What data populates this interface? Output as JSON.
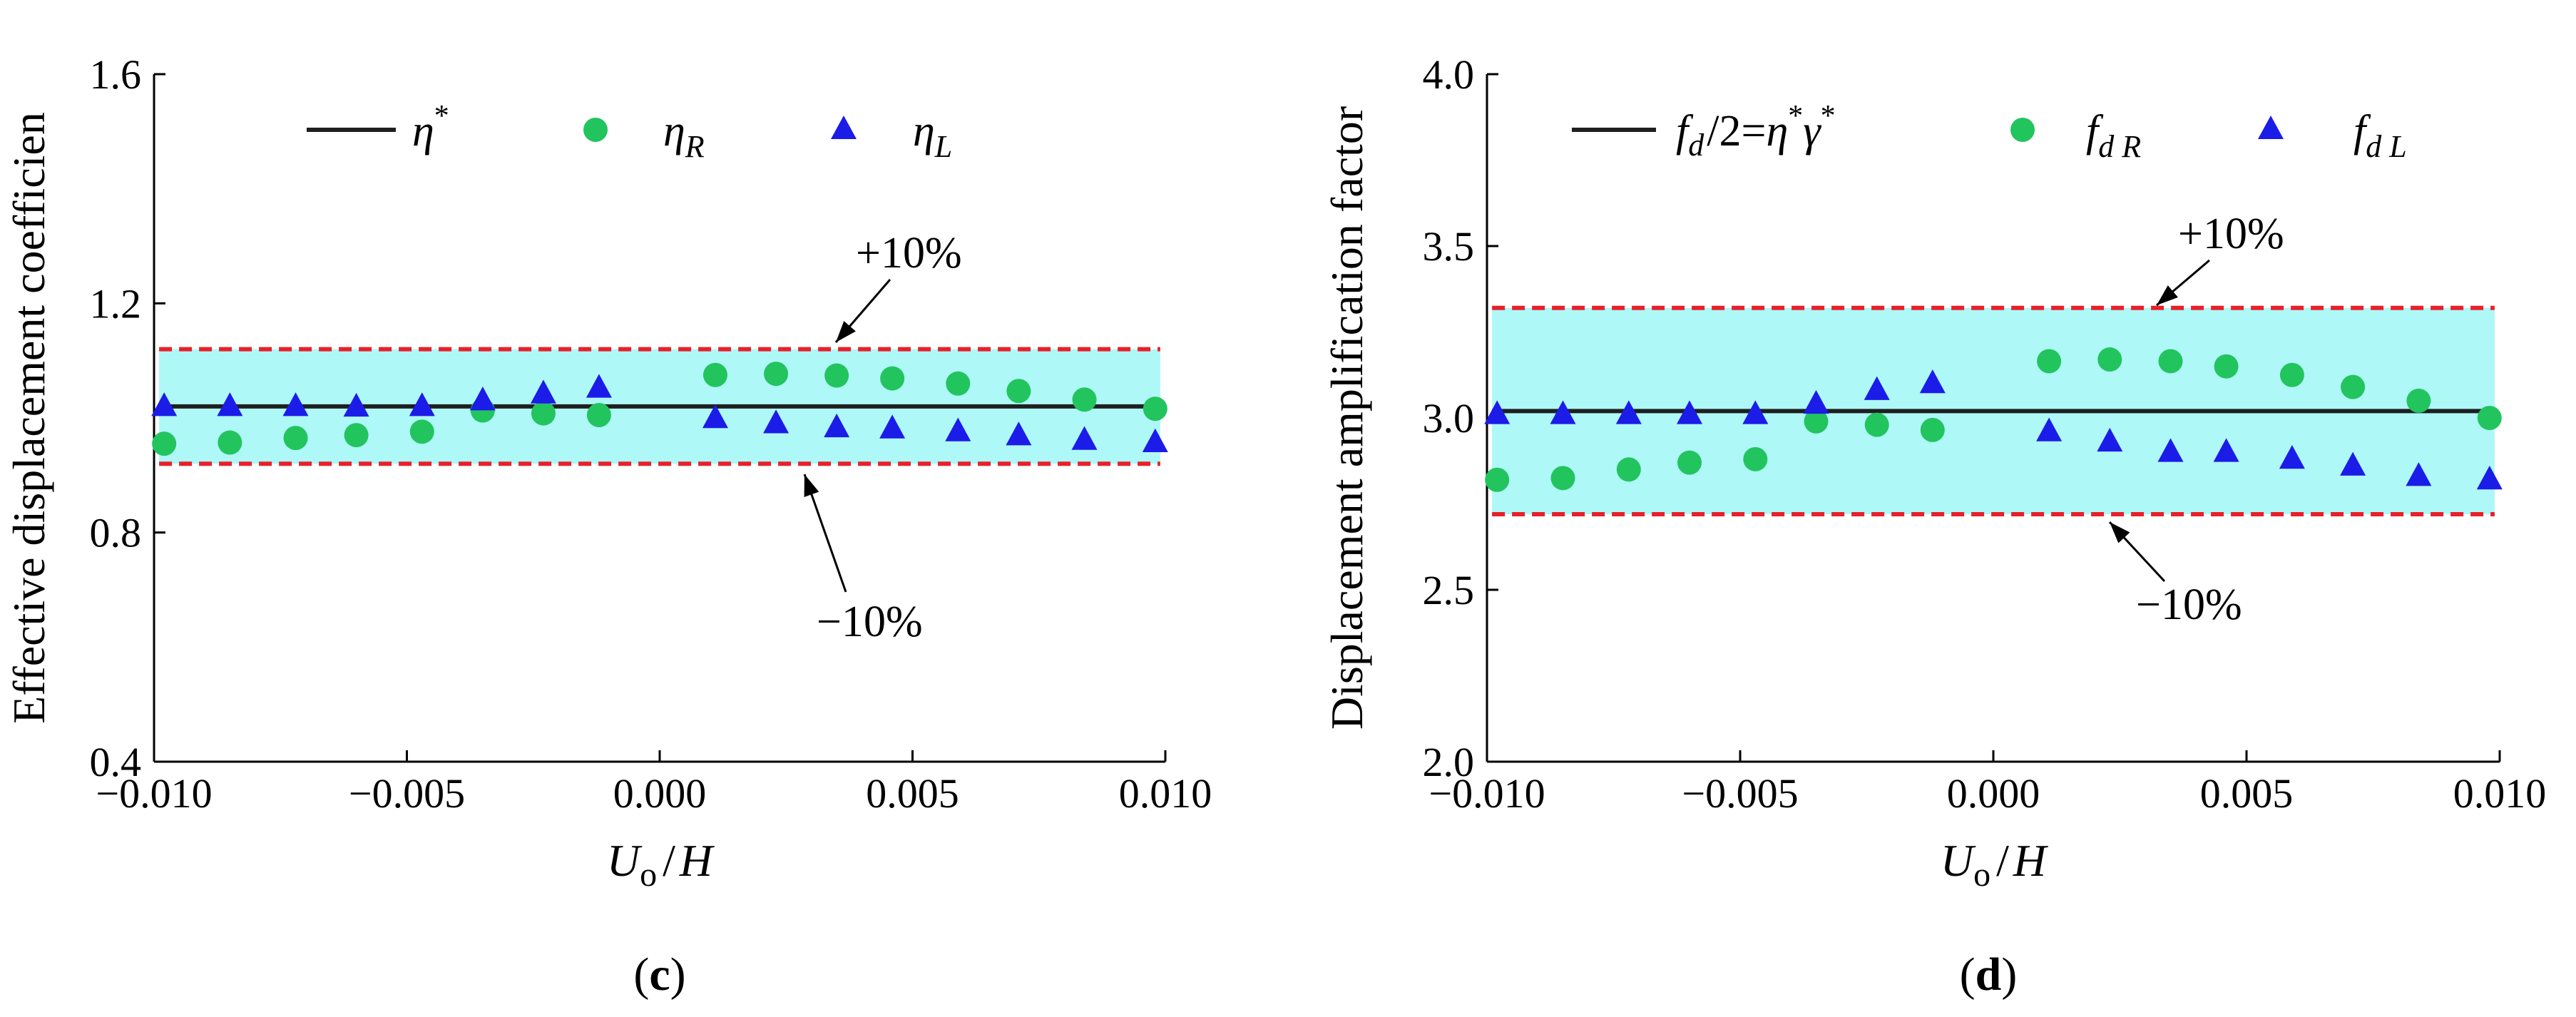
{
  "colors": {
    "band_fill": "#aef8f8",
    "ref_line": "#1f1f1f",
    "limit_dash": "#e8202a",
    "green": "#22c45e",
    "blue": "#1c1ce8"
  },
  "chart_data": [
    {
      "type": "scatter",
      "panel": "(c)",
      "panel_letter": "c",
      "xlabel": "Uo/H",
      "ylabel": "Effective displacement  coefficien",
      "xlim": [
        -0.01,
        0.01
      ],
      "ylim": [
        0.4,
        1.6
      ],
      "xticks": [
        -0.01,
        -0.005,
        0.0,
        0.005,
        0.01
      ],
      "xtick_labels": [
        "−0.010",
        "−0.005",
        "0.000",
        "0.005",
        "0.010"
      ],
      "yticks": [
        0.4,
        0.8,
        1.2,
        1.6
      ],
      "ytick_labels": [
        "0.4",
        "0.8",
        "1.2",
        "1.6"
      ],
      "reference_line": {
        "name": "η*",
        "value": 1.02
      },
      "band": {
        "upper": 1.12,
        "lower": 0.92
      },
      "annotations": {
        "upper": "+10%",
        "lower": "−10%"
      },
      "legend": [
        {
          "symbol": "η",
          "sup": "*",
          "sub": ""
        },
        {
          "symbol": "η",
          "sup": "",
          "sub": "R"
        },
        {
          "symbol": "η",
          "sup": "",
          "sub": "L"
        }
      ],
      "series": [
        {
          "name": "ηR",
          "marker": "circle",
          "color": "green",
          "x": [
            -0.0098,
            -0.0085,
            -0.0072,
            -0.006,
            -0.0047,
            -0.0035,
            -0.0023,
            -0.0012,
            0.0011,
            0.0023,
            0.0035,
            0.0046,
            0.0059,
            0.0071,
            0.0084,
            0.0098
          ],
          "y": [
            0.955,
            0.957,
            0.965,
            0.97,
            0.976,
            1.013,
            1.008,
            1.005,
            1.075,
            1.077,
            1.074,
            1.069,
            1.06,
            1.047,
            1.032,
            1.016
          ]
        },
        {
          "name": "ηL",
          "marker": "triangle",
          "color": "blue",
          "x": [
            -0.0098,
            -0.0085,
            -0.0072,
            -0.006,
            -0.0047,
            -0.0035,
            -0.0023,
            -0.0012,
            0.0011,
            0.0023,
            0.0035,
            0.0046,
            0.0059,
            0.0071,
            0.0084,
            0.0098
          ],
          "y": [
            1.02,
            1.02,
            1.02,
            1.019,
            1.02,
            1.03,
            1.042,
            1.052,
            0.999,
            0.99,
            0.983,
            0.981,
            0.976,
            0.969,
            0.961,
            0.957
          ]
        }
      ]
    },
    {
      "type": "scatter",
      "panel": "(d)",
      "panel_letter": "d",
      "xlabel": "Uo/H",
      "ylabel": "Displacement amplification factor",
      "xlim": [
        -0.01,
        0.01
      ],
      "ylim": [
        2.0,
        4.0
      ],
      "xticks": [
        -0.01,
        -0.005,
        0.0,
        0.005,
        0.01
      ],
      "xtick_labels": [
        "−0.010",
        "−0.005",
        "0.000",
        "0.005",
        "0.010"
      ],
      "yticks": [
        2.0,
        2.5,
        3.0,
        3.5,
        4.0
      ],
      "ytick_labels": [
        "2.0",
        "2.5",
        "3.0",
        "3.5",
        "4.0"
      ],
      "reference_line": {
        "name": "fd/2=η*γ*",
        "value": 3.02
      },
      "band": {
        "upper": 3.32,
        "lower": 2.72
      },
      "annotations": {
        "upper": "+10%",
        "lower": "−10%"
      },
      "legend": [
        {
          "text": "fd/2=η*γ*"
        },
        {
          "symbol": "f",
          "sub": "d R"
        },
        {
          "symbol": "f",
          "sub": "d L"
        }
      ],
      "series": [
        {
          "name": "fd R",
          "marker": "circle",
          "color": "green",
          "x": [
            -0.0098,
            -0.0085,
            -0.0072,
            -0.006,
            -0.0047,
            -0.0035,
            -0.0023,
            -0.0012,
            0.0011,
            0.0023,
            0.0035,
            0.0046,
            0.0059,
            0.0071,
            0.0084,
            0.0098
          ],
          "y": [
            2.82,
            2.825,
            2.85,
            2.87,
            2.88,
            2.99,
            2.98,
            2.965,
            3.165,
            3.17,
            3.165,
            3.15,
            3.125,
            3.09,
            3.05,
            3.0
          ]
        },
        {
          "name": "fd L",
          "marker": "triangle",
          "color": "blue",
          "x": [
            -0.0098,
            -0.0085,
            -0.0072,
            -0.006,
            -0.0047,
            -0.0035,
            -0.0023,
            -0.0012,
            0.0011,
            0.0023,
            0.0035,
            0.0046,
            0.0059,
            0.0071,
            0.0084,
            0.0098
          ],
          "y": [
            3.01,
            3.01,
            3.01,
            3.01,
            3.01,
            3.04,
            3.08,
            3.1,
            2.96,
            2.93,
            2.9,
            2.9,
            2.88,
            2.86,
            2.83,
            2.82
          ]
        }
      ]
    }
  ]
}
